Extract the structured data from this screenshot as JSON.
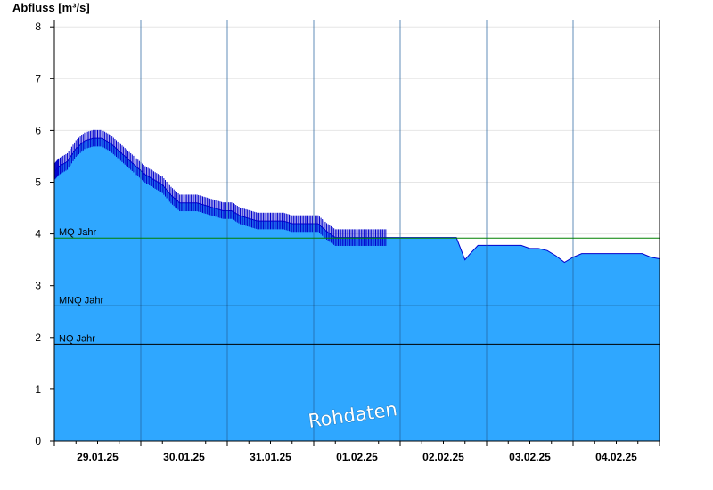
{
  "chart_data": {
    "type": "area",
    "ylabel": "Abfluss [m³/s]",
    "ylim": [
      0,
      8.3
    ],
    "yticks": [
      0,
      1,
      2,
      3,
      4,
      5,
      6,
      7,
      8
    ],
    "xlim": [
      0,
      7
    ],
    "date_ticks": [
      "29.01.25",
      "30.01.25",
      "31.01.25",
      "01.02.25",
      "02.02.25",
      "03.02.25",
      "04.02.25"
    ],
    "grid": true,
    "watermark": "Rohdaten",
    "colors": {
      "area_fill": "#2fa7ff",
      "line": "#0000cc",
      "mq_line": "#008000",
      "ref_line": "#000000",
      "grid": "#e6e6e6",
      "day_separator": "#1f5e9a"
    },
    "reference_lines": [
      {
        "label": "MQ Jahr",
        "value": 3.92,
        "color": "#008000"
      },
      {
        "label": "MNQ Jahr",
        "value": 2.61,
        "color": "#000000"
      },
      {
        "label": "NQ Jahr",
        "value": 1.87,
        "color": "#000000"
      }
    ],
    "series": [
      {
        "x": [
          0.0,
          0.05,
          0.15,
          0.25,
          0.35,
          0.45,
          0.55,
          0.65,
          0.75,
          0.85,
          0.95,
          1.05,
          1.15,
          1.25,
          1.35,
          1.45,
          1.55,
          1.65,
          1.75,
          1.85,
          1.95,
          2.05,
          2.15,
          2.25,
          2.35,
          2.45,
          2.55,
          2.65,
          2.75,
          2.85,
          2.95,
          3.05,
          3.15,
          3.25,
          3.35,
          3.45,
          3.55,
          3.65,
          3.75,
          3.85,
          3.95,
          4.05,
          4.15,
          4.25,
          4.35,
          4.45,
          4.55,
          4.65,
          4.75,
          4.8,
          4.9,
          5.0,
          5.1,
          5.2,
          5.3,
          5.4,
          5.5,
          5.6,
          5.7,
          5.8,
          5.9,
          6.0,
          6.1,
          6.2,
          6.3,
          6.4,
          6.5,
          6.6,
          6.7,
          6.8,
          6.9,
          7.0
        ],
        "y": [
          5.2,
          5.3,
          5.4,
          5.65,
          5.8,
          5.85,
          5.85,
          5.75,
          5.6,
          5.45,
          5.3,
          5.15,
          5.05,
          4.95,
          4.75,
          4.6,
          4.6,
          4.6,
          4.55,
          4.5,
          4.45,
          4.45,
          4.35,
          4.3,
          4.25,
          4.25,
          4.25,
          4.25,
          4.2,
          4.2,
          4.2,
          4.2,
          4.05,
          3.93,
          3.93,
          3.93,
          3.93,
          3.93,
          3.93,
          3.93,
          3.93,
          3.93,
          3.93,
          3.93,
          3.93,
          3.93,
          3.93,
          3.93,
          3.5,
          3.6,
          3.78,
          3.78,
          3.78,
          3.78,
          3.78,
          3.78,
          3.72,
          3.72,
          3.68,
          3.58,
          3.45,
          3.55,
          3.62,
          3.62,
          3.62,
          3.62,
          3.62,
          3.62,
          3.62,
          3.62,
          3.55,
          3.52
        ]
      }
    ]
  }
}
